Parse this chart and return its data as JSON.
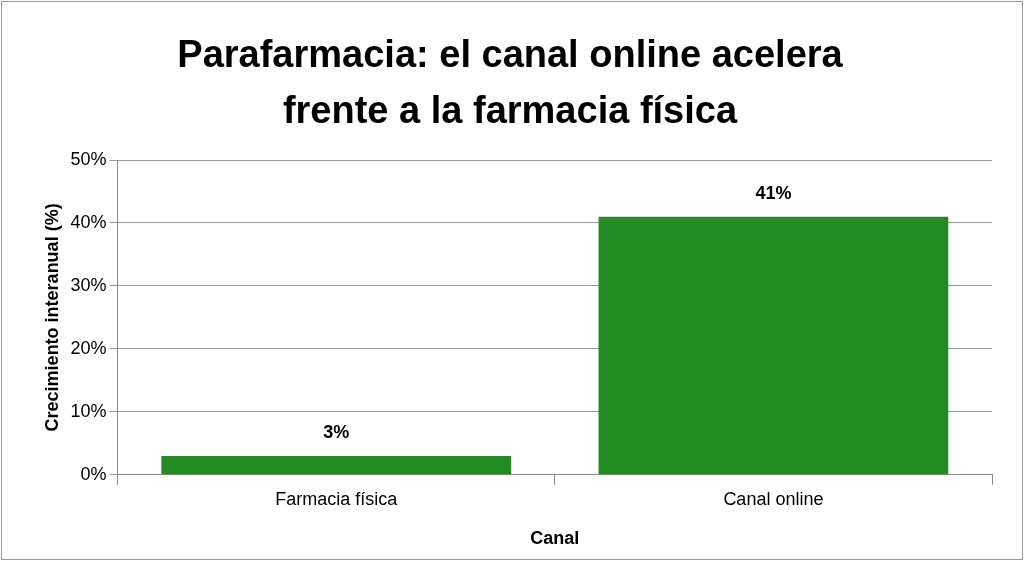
{
  "chart_data": {
    "type": "bar",
    "title": "Parafarmacia: el canal online acelera frente a la farmacia física",
    "xlabel": "Canal",
    "ylabel": "Crecimiento interanual (%)",
    "categories": [
      "Farmacia física",
      "Canal online"
    ],
    "values": [
      3,
      41
    ],
    "color": "#228b22",
    "value_labels": [
      "3%",
      "41%"
    ],
    "ylim": [
      0,
      50
    ],
    "yticks": [
      {
        "value": 0,
        "label": "0%"
      },
      {
        "value": 10,
        "label": "10%"
      },
      {
        "value": 20,
        "label": "20%"
      },
      {
        "value": 30,
        "label": "30%"
      },
      {
        "value": 40,
        "label": "40%"
      },
      {
        "value": 50,
        "label": "50%"
      }
    ],
    "grid": "y",
    "legend": false
  }
}
